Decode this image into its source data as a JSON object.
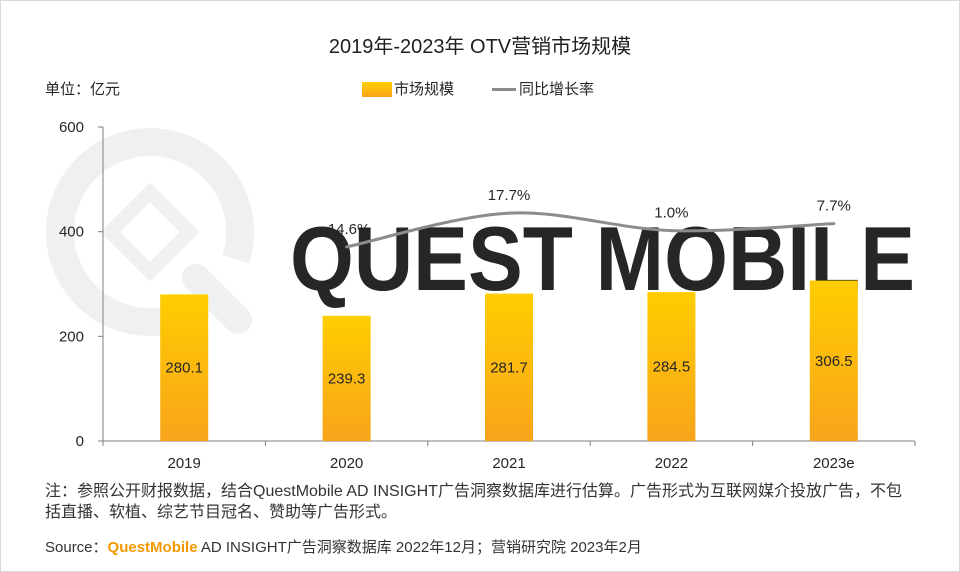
{
  "colors": {
    "bar_top": "#FFCD00",
    "bar_bottom": "#F8A41B",
    "line": "#8C8C8C",
    "axis": "#7F7F7F",
    "text": "#262626",
    "brand": "#F39800",
    "watermark": "#F0F0F0"
  },
  "chart_data": {
    "type": "bar",
    "title": "2019年-2023年 OTV营销市场规模",
    "ylabel": "单位：亿元",
    "categories": [
      "2019",
      "2020",
      "2021",
      "2022",
      "2023e"
    ],
    "ylim": [
      0,
      600
    ],
    "yticks": [
      0,
      200,
      400,
      600
    ],
    "grid": false,
    "legend_position": "top-center",
    "series": [
      {
        "name": "市场规模",
        "type": "bar",
        "values": [
          280.1,
          239.3,
          281.7,
          284.5,
          306.5
        ]
      },
      {
        "name": "同比增长率",
        "type": "line",
        "smooth": true,
        "value_suffix": "%",
        "values": [
          null,
          -14.6,
          17.7,
          1.0,
          7.7
        ]
      }
    ]
  },
  "note": "注：参照公开财报数据，结合QuestMobile AD INSIGHT广告洞察数据库进行估算。广告形式为互联网媒介投放广告，不包括直播、软植、综艺节目冠名、赞助等广告形式。",
  "source": {
    "prefix": "Source：",
    "brand": "QuestMobile",
    "rest": " AD INSIGHT广告洞察数据库 2022年12月；营销研究院 2023年2月"
  },
  "watermark": {
    "text": "QUEST MOBILE"
  }
}
